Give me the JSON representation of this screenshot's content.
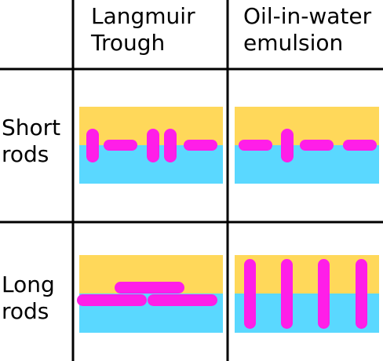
{
  "columns": [
    {
      "line1": "Langmuir",
      "line2": "Trough"
    },
    {
      "line1": "Oil-in-water",
      "line2": "emulsion"
    }
  ],
  "rows": [
    {
      "line1": "Short",
      "line2": "rods"
    },
    {
      "line1": "Long",
      "line2": "rods"
    }
  ],
  "colors": {
    "oil": "#FFD85A",
    "water": "#5AD8FF",
    "rod": "#FF1EE8",
    "grid": "#000000"
  }
}
